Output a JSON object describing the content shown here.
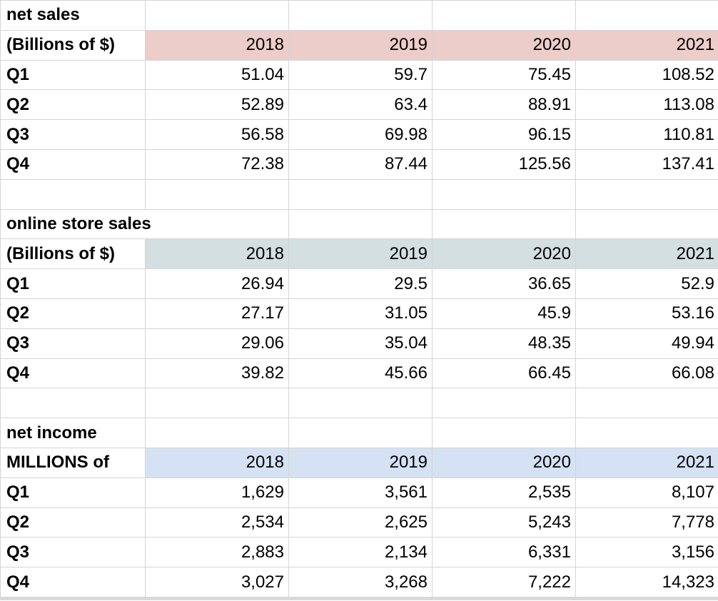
{
  "app": {
    "type": "spreadsheet-table"
  },
  "colors": {
    "net_sales_header": "#edcdca",
    "online_store_header": "#d3dfe0",
    "net_income_header": "#d4e2f3",
    "gridline": "#d5d5d5"
  },
  "sections": [
    {
      "title": "net sales",
      "unit": "(Billions of $)",
      "years": [
        "2018",
        "2019",
        "2020",
        "2021"
      ],
      "rows": [
        {
          "label": "Q1",
          "values": [
            "51.04",
            "59.7",
            "75.45",
            "108.52"
          ]
        },
        {
          "label": "Q2",
          "values": [
            "52.89",
            "63.4",
            "88.91",
            "113.08"
          ]
        },
        {
          "label": "Q3",
          "values": [
            "56.58",
            "69.98",
            "96.15",
            "110.81"
          ]
        },
        {
          "label": "Q4",
          "values": [
            "72.38",
            "87.44",
            "125.56",
            "137.41"
          ]
        }
      ]
    },
    {
      "title": "online store sales",
      "unit": "(Billions of $)",
      "years": [
        "2018",
        "2019",
        "2020",
        "2021"
      ],
      "rows": [
        {
          "label": "Q1",
          "values": [
            "26.94",
            "29.5",
            "36.65",
            "52.9"
          ]
        },
        {
          "label": "Q2",
          "values": [
            "27.17",
            "31.05",
            "45.9",
            "53.16"
          ]
        },
        {
          "label": "Q3",
          "values": [
            "29.06",
            "35.04",
            "48.35",
            "49.94"
          ]
        },
        {
          "label": "Q4",
          "values": [
            "39.82",
            "45.66",
            "66.45",
            "66.08"
          ]
        }
      ]
    },
    {
      "title": "net income",
      "unit": "MILLIONS of",
      "years": [
        "2018",
        "2019",
        "2020",
        "2021"
      ],
      "rows": [
        {
          "label": "Q1",
          "values": [
            "1,629",
            "3,561",
            "2,535",
            "8,107"
          ]
        },
        {
          "label": "Q2",
          "values": [
            "2,534",
            "2,625",
            "5,243",
            "7,778"
          ]
        },
        {
          "label": "Q3",
          "values": [
            "2,883",
            "2,134",
            "6,331",
            "3,156"
          ]
        },
        {
          "label": "Q4",
          "values": [
            "3,027",
            "3,268",
            "7,222",
            "14,323"
          ]
        }
      ]
    }
  ]
}
